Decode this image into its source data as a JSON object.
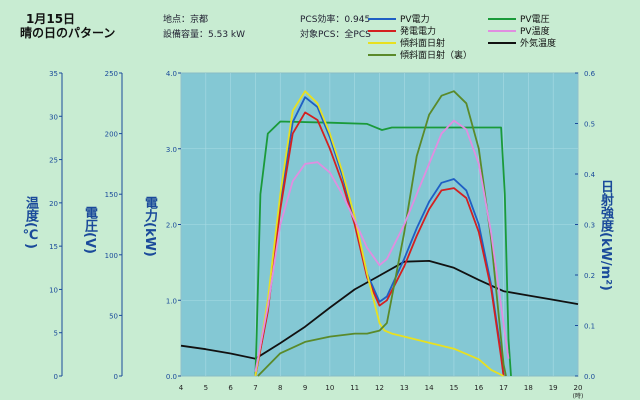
{
  "header": {
    "date": "1月15日",
    "pattern": "晴の日のパターン",
    "location": "地点：京都",
    "capacity": "設備容量：5.53 kW",
    "pcs_eff": "PCS効率：0.945",
    "target": "対象PCS：全PCS"
  },
  "legend": [
    {
      "label": "PV電力",
      "color": "#1f5fc4"
    },
    {
      "label": "PV電圧",
      "color": "#1a9a3a"
    },
    {
      "label": "発電電力",
      "color": "#d42020"
    },
    {
      "label": "PV温度",
      "color": "#e08ee0"
    },
    {
      "label": "傾斜面日射",
      "color": "#e8e020"
    },
    {
      "label": "外気温度",
      "color": "#111111"
    },
    {
      "label": "傾斜面日射（裏）",
      "color": "#5a8a2a"
    }
  ],
  "axis_titles": {
    "temp": "温度(℃)",
    "volt": "電圧(V)",
    "power": "電力(kW)",
    "irr": "日射強度(kW/m²)",
    "x_unit": "(時)"
  },
  "chart_data": {
    "type": "line",
    "x_label": "(時)",
    "xlim": [
      4,
      20
    ],
    "x_ticks": [
      4,
      5,
      6,
      7,
      8,
      9,
      10,
      11,
      12,
      13,
      14,
      15,
      16,
      17,
      18,
      19,
      20
    ],
    "axes": {
      "temp": {
        "label": "温度(℃)",
        "lim": [
          0,
          35
        ],
        "ticks": [
          0,
          5,
          10,
          15,
          20,
          25,
          30,
          35
        ]
      },
      "volt": {
        "label": "電圧(V)",
        "lim": [
          0,
          250
        ],
        "ticks": [
          0,
          50,
          100,
          150,
          200,
          250
        ]
      },
      "power": {
        "label": "電力(kW)",
        "lim": [
          0,
          4
        ],
        "ticks": [
          "0.0",
          "1.0",
          "2.0",
          "3.0",
          "4.0"
        ]
      },
      "irr": {
        "label": "日射強度(kW/m²)",
        "lim": [
          0,
          0.6
        ],
        "ticks": [
          "0.0",
          "0.1",
          "0.2",
          "0.3",
          "0.4",
          "0.5",
          "0.6"
        ]
      }
    },
    "series": [
      {
        "name": "外気温度",
        "axis": "temp",
        "color": "#111111",
        "points": [
          [
            4,
            3.5
          ],
          [
            5,
            3.1
          ],
          [
            6,
            2.6
          ],
          [
            7,
            2.0
          ],
          [
            8,
            3.8
          ],
          [
            9,
            5.7
          ],
          [
            10,
            7.9
          ],
          [
            11,
            10.0
          ],
          [
            12,
            11.6
          ],
          [
            13,
            13.2
          ],
          [
            14,
            13.3
          ],
          [
            15,
            12.5
          ],
          [
            16,
            11.1
          ],
          [
            17,
            9.8
          ],
          [
            18,
            9.3
          ],
          [
            19,
            8.8
          ],
          [
            20,
            8.3
          ]
        ]
      },
      {
        "name": "PV電圧",
        "axis": "volt",
        "color": "#1a9a3a",
        "points": [
          [
            7.0,
            0
          ],
          [
            7.05,
            35
          ],
          [
            7.2,
            150
          ],
          [
            7.5,
            200
          ],
          [
            8,
            210
          ],
          [
            10,
            209
          ],
          [
            11.5,
            208
          ],
          [
            12.1,
            203
          ],
          [
            12.5,
            205
          ],
          [
            14,
            205
          ],
          [
            16,
            205
          ],
          [
            16.9,
            205
          ],
          [
            17.05,
            150
          ],
          [
            17.2,
            30
          ],
          [
            17.3,
            0
          ]
        ]
      },
      {
        "name": "PV電力",
        "axis": "power",
        "color": "#1f5fc4",
        "points": [
          [
            7,
            0
          ],
          [
            7.5,
            0.9
          ],
          [
            8,
            2.3
          ],
          [
            8.5,
            3.35
          ],
          [
            9,
            3.68
          ],
          [
            9.5,
            3.55
          ],
          [
            10,
            3.15
          ],
          [
            10.5,
            2.65
          ],
          [
            11,
            2.05
          ],
          [
            11.5,
            1.35
          ],
          [
            12,
            0.98
          ],
          [
            12.3,
            1.05
          ],
          [
            13,
            1.55
          ],
          [
            13.5,
            1.95
          ],
          [
            14,
            2.3
          ],
          [
            14.5,
            2.55
          ],
          [
            15,
            2.6
          ],
          [
            15.5,
            2.45
          ],
          [
            16,
            2.0
          ],
          [
            16.5,
            1.2
          ],
          [
            16.9,
            0.3
          ],
          [
            17,
            0
          ]
        ]
      },
      {
        "name": "発電電力",
        "axis": "power",
        "color": "#d42020",
        "points": [
          [
            7,
            0
          ],
          [
            7.5,
            0.85
          ],
          [
            8,
            2.2
          ],
          [
            8.5,
            3.2
          ],
          [
            9,
            3.48
          ],
          [
            9.5,
            3.38
          ],
          [
            10,
            3.0
          ],
          [
            10.5,
            2.55
          ],
          [
            11,
            2.0
          ],
          [
            11.5,
            1.3
          ],
          [
            12,
            0.93
          ],
          [
            12.3,
            1.0
          ],
          [
            13,
            1.45
          ],
          [
            13.5,
            1.85
          ],
          [
            14,
            2.2
          ],
          [
            14.5,
            2.45
          ],
          [
            15,
            2.48
          ],
          [
            15.5,
            2.35
          ],
          [
            16,
            1.9
          ],
          [
            16.5,
            1.15
          ],
          [
            16.9,
            0.25
          ],
          [
            17,
            0
          ]
        ]
      },
      {
        "name": "傾斜面日射",
        "axis": "power",
        "color": "#e8e020",
        "points": [
          [
            7,
            0
          ],
          [
            7.5,
            1.0
          ],
          [
            8,
            2.4
          ],
          [
            8.5,
            3.5
          ],
          [
            9,
            3.76
          ],
          [
            9.5,
            3.6
          ],
          [
            10,
            3.2
          ],
          [
            10.5,
            2.7
          ],
          [
            11,
            2.1
          ],
          [
            11.5,
            1.35
          ],
          [
            12,
            0.7
          ],
          [
            12.2,
            0.6
          ],
          [
            12.5,
            0.56
          ],
          [
            13,
            0.52
          ],
          [
            14,
            0.44
          ],
          [
            15,
            0.36
          ],
          [
            16,
            0.22
          ],
          [
            16.5,
            0.08
          ],
          [
            17,
            0
          ]
        ]
      },
      {
        "name": "傾斜面日射（裏）",
        "axis": "power",
        "color": "#5a8a2a",
        "points": [
          [
            7.1,
            0
          ],
          [
            8,
            0.3
          ],
          [
            9,
            0.45
          ],
          [
            10,
            0.52
          ],
          [
            11,
            0.56
          ],
          [
            11.5,
            0.56
          ],
          [
            12,
            0.6
          ],
          [
            12.3,
            0.7
          ],
          [
            13,
            1.9
          ],
          [
            13.5,
            2.9
          ],
          [
            14,
            3.45
          ],
          [
            14.5,
            3.7
          ],
          [
            15,
            3.76
          ],
          [
            15.5,
            3.6
          ],
          [
            16,
            3.0
          ],
          [
            16.5,
            1.8
          ],
          [
            17,
            0.15
          ],
          [
            17.1,
            0
          ]
        ]
      },
      {
        "name": "PV温度",
        "axis": "temp",
        "color": "#e08ee0",
        "points": [
          [
            7,
            0.5
          ],
          [
            7.5,
            8.0
          ],
          [
            8,
            17.5
          ],
          [
            8.5,
            22.5
          ],
          [
            9,
            24.5
          ],
          [
            9.5,
            24.7
          ],
          [
            10,
            23.5
          ],
          [
            10.5,
            21.0
          ],
          [
            11,
            18.0
          ],
          [
            11.5,
            14.8
          ],
          [
            12,
            12.8
          ],
          [
            12.3,
            13.5
          ],
          [
            13,
            17.5
          ],
          [
            13.5,
            21.0
          ],
          [
            14,
            24.5
          ],
          [
            14.5,
            28.0
          ],
          [
            15,
            29.5
          ],
          [
            15.5,
            28.5
          ],
          [
            16,
            24.5
          ],
          [
            16.5,
            16.5
          ],
          [
            17,
            6.0
          ],
          [
            17.2,
            2.0
          ]
        ]
      }
    ]
  }
}
